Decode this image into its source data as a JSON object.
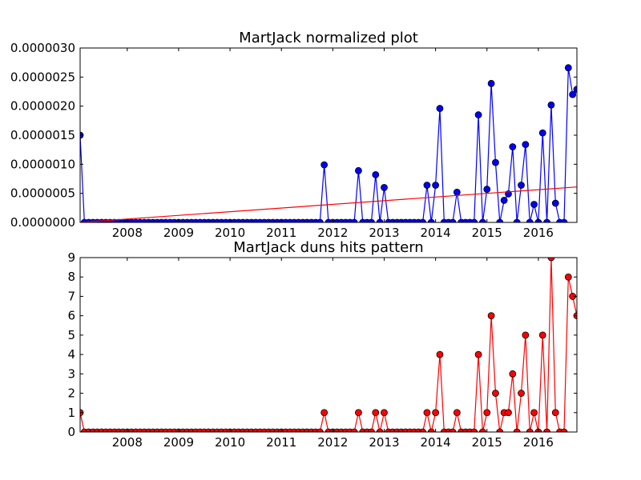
{
  "chart_data": [
    {
      "type": "line",
      "title": "MartJack normalized plot",
      "xlabel": "",
      "ylabel": "",
      "x_tick_labels": [
        "2008",
        "2009",
        "2010",
        "2011",
        "2012",
        "2013",
        "2014",
        "2015",
        "2016"
      ],
      "y_tick_labels": [
        "0.0000000",
        "0.0000005",
        "0.0000010",
        "0.0000015",
        "0.0000020",
        "0.0000025",
        "0.0000030"
      ],
      "xlim": [
        "2007-02",
        "2016-10"
      ],
      "ylim": [
        0,
        3e-06
      ],
      "grid": false,
      "series": [
        {
          "color": "#0000ff",
          "marker": "circle",
          "x": [
            "2007-02",
            "2007-03",
            "2007-04",
            "2007-05",
            "2007-06",
            "2007-07",
            "2007-08",
            "2007-09",
            "2007-10",
            "2007-11",
            "2007-12",
            "2008-01",
            "2008-02",
            "2008-03",
            "2008-04",
            "2008-05",
            "2008-06",
            "2008-07",
            "2008-08",
            "2008-09",
            "2008-10",
            "2008-11",
            "2008-12",
            "2009-01",
            "2009-02",
            "2009-03",
            "2009-04",
            "2009-05",
            "2009-06",
            "2009-07",
            "2009-08",
            "2009-09",
            "2009-10",
            "2009-11",
            "2009-12",
            "2010-01",
            "2010-02",
            "2010-03",
            "2010-04",
            "2010-05",
            "2010-06",
            "2010-07",
            "2010-08",
            "2010-09",
            "2010-10",
            "2010-11",
            "2010-12",
            "2011-01",
            "2011-02",
            "2011-03",
            "2011-04",
            "2011-05",
            "2011-06",
            "2011-07",
            "2011-08",
            "2011-09",
            "2011-10",
            "2011-11",
            "2011-12",
            "2012-01",
            "2012-02",
            "2012-03",
            "2012-04",
            "2012-05",
            "2012-06",
            "2012-07",
            "2012-08",
            "2012-09",
            "2012-10",
            "2012-11",
            "2012-12",
            "2013-01",
            "2013-02",
            "2013-03",
            "2013-04",
            "2013-05",
            "2013-06",
            "2013-07",
            "2013-08",
            "2013-09",
            "2013-10",
            "2013-11",
            "2013-12",
            "2014-01",
            "2014-02",
            "2014-03",
            "2014-04",
            "2014-05",
            "2014-06",
            "2014-07",
            "2014-08",
            "2014-09",
            "2014-10",
            "2014-11",
            "2014-12",
            "2015-01",
            "2015-02",
            "2015-03",
            "2015-04",
            "2015-05",
            "2015-06",
            "2015-07",
            "2015-08",
            "2015-09",
            "2015-10",
            "2015-11",
            "2015-12",
            "2016-01",
            "2016-02",
            "2016-03",
            "2016-04",
            "2016-05",
            "2016-06",
            "2016-07",
            "2016-08",
            "2016-09",
            "2016-10"
          ],
          "values": [
            1.5e-06,
            0,
            0,
            0,
            0,
            0,
            0,
            0,
            0,
            0,
            0,
            0,
            0,
            0,
            0,
            0,
            0,
            0,
            0,
            0,
            0,
            0,
            0,
            0,
            0,
            0,
            0,
            0,
            0,
            0,
            0,
            0,
            0,
            0,
            0,
            0,
            0,
            0,
            0,
            0,
            0,
            0,
            0,
            0,
            0,
            0,
            0,
            0,
            0,
            0,
            0,
            0,
            0,
            0,
            0,
            0,
            0,
            9.9e-07,
            0,
            0,
            0,
            0,
            0,
            0,
            0,
            8.9e-07,
            0,
            0,
            0,
            8.2e-07,
            0,
            6e-07,
            0,
            0,
            0,
            0,
            0,
            0,
            0,
            0,
            0,
            6.4e-07,
            0,
            6.4e-07,
            1.96e-06,
            0,
            0,
            0,
            5.2e-07,
            0,
            0,
            0,
            0,
            1.85e-06,
            0,
            5.7e-07,
            2.39e-06,
            1.03e-06,
            0,
            3.8e-07,
            4.9e-07,
            1.3e-06,
            0,
            6.4e-07,
            1.34e-06,
            0,
            3.1e-07,
            0,
            1.54e-06,
            0,
            2.02e-06,
            3.3e-07,
            0,
            0,
            2.66e-06,
            2.2e-06,
            2.29e-06
          ]
        },
        {
          "color": "#ff0000",
          "marker": "none",
          "x": [
            "2007-02",
            "2016-10"
          ],
          "values": [
            0,
            6.1e-07
          ]
        }
      ]
    },
    {
      "type": "line",
      "title": "MartJack duns hits pattern",
      "xlabel": "",
      "ylabel": "",
      "x_tick_labels": [
        "2008",
        "2009",
        "2010",
        "2011",
        "2012",
        "2013",
        "2014",
        "2015",
        "2016"
      ],
      "y_tick_labels": [
        "0",
        "1",
        "2",
        "3",
        "4",
        "5",
        "6",
        "7",
        "8",
        "9"
      ],
      "xlim": [
        "2007-02",
        "2016-10"
      ],
      "ylim": [
        0,
        9
      ],
      "grid": false,
      "series": [
        {
          "color": "#ff0000",
          "marker": "circle",
          "x": [
            "2007-02",
            "2007-03",
            "2007-04",
            "2007-05",
            "2007-06",
            "2007-07",
            "2007-08",
            "2007-09",
            "2007-10",
            "2007-11",
            "2007-12",
            "2008-01",
            "2008-02",
            "2008-03",
            "2008-04",
            "2008-05",
            "2008-06",
            "2008-07",
            "2008-08",
            "2008-09",
            "2008-10",
            "2008-11",
            "2008-12",
            "2009-01",
            "2009-02",
            "2009-03",
            "2009-04",
            "2009-05",
            "2009-06",
            "2009-07",
            "2009-08",
            "2009-09",
            "2009-10",
            "2009-11",
            "2009-12",
            "2010-01",
            "2010-02",
            "2010-03",
            "2010-04",
            "2010-05",
            "2010-06",
            "2010-07",
            "2010-08",
            "2010-09",
            "2010-10",
            "2010-11",
            "2010-12",
            "2011-01",
            "2011-02",
            "2011-03",
            "2011-04",
            "2011-05",
            "2011-06",
            "2011-07",
            "2011-08",
            "2011-09",
            "2011-10",
            "2011-11",
            "2011-12",
            "2012-01",
            "2012-02",
            "2012-03",
            "2012-04",
            "2012-05",
            "2012-06",
            "2012-07",
            "2012-08",
            "2012-09",
            "2012-10",
            "2012-11",
            "2012-12",
            "2013-01",
            "2013-02",
            "2013-03",
            "2013-04",
            "2013-05",
            "2013-06",
            "2013-07",
            "2013-08",
            "2013-09",
            "2013-10",
            "2013-11",
            "2013-12",
            "2014-01",
            "2014-02",
            "2014-03",
            "2014-04",
            "2014-05",
            "2014-06",
            "2014-07",
            "2014-08",
            "2014-09",
            "2014-10",
            "2014-11",
            "2014-12",
            "2015-01",
            "2015-02",
            "2015-03",
            "2015-04",
            "2015-05",
            "2015-06",
            "2015-07",
            "2015-08",
            "2015-09",
            "2015-10",
            "2015-11",
            "2015-12",
            "2016-01",
            "2016-02",
            "2016-03",
            "2016-04",
            "2016-05",
            "2016-06",
            "2016-07",
            "2016-08",
            "2016-09",
            "2016-10"
          ],
          "values": [
            1,
            0,
            0,
            0,
            0,
            0,
            0,
            0,
            0,
            0,
            0,
            0,
            0,
            0,
            0,
            0,
            0,
            0,
            0,
            0,
            0,
            0,
            0,
            0,
            0,
            0,
            0,
            0,
            0,
            0,
            0,
            0,
            0,
            0,
            0,
            0,
            0,
            0,
            0,
            0,
            0,
            0,
            0,
            0,
            0,
            0,
            0,
            0,
            0,
            0,
            0,
            0,
            0,
            0,
            0,
            0,
            0,
            1,
            0,
            0,
            0,
            0,
            0,
            0,
            0,
            1,
            0,
            0,
            0,
            1,
            0,
            1,
            0,
            0,
            0,
            0,
            0,
            0,
            0,
            0,
            0,
            1,
            0,
            1,
            4,
            0,
            0,
            0,
            1,
            0,
            0,
            0,
            0,
            4,
            0,
            1,
            6,
            2,
            0,
            1,
            1,
            3,
            0,
            2,
            5,
            0,
            1,
            0,
            5,
            0,
            9,
            1,
            0,
            0,
            8,
            7,
            6
          ]
        }
      ]
    }
  ]
}
